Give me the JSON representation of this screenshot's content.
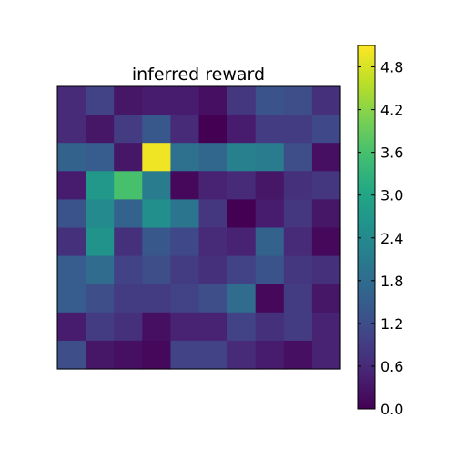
{
  "chart_data": {
    "type": "heatmap",
    "title": "inferred reward",
    "xlabel": "",
    "ylabel": "",
    "x_ticks": false,
    "y_ticks": false,
    "rows": 10,
    "cols": 10,
    "colormap": "viridis",
    "colorbar": {
      "position": "right",
      "range": [
        0.0,
        5.1
      ],
      "ticks": [
        0.0,
        0.6,
        1.2,
        1.8,
        2.4,
        3.0,
        3.6,
        4.2,
        4.8
      ],
      "tick_labels": [
        "0.0",
        "0.6",
        "1.2",
        "1.8",
        "2.4",
        "3.0",
        "3.6",
        "4.2",
        "4.8"
      ]
    },
    "values": [
      [
        0.6,
        1.0,
        0.3,
        0.4,
        0.4,
        0.2,
        0.8,
        1.3,
        1.2,
        0.7
      ],
      [
        0.6,
        0.3,
        0.9,
        1.4,
        0.6,
        0.0,
        0.4,
        0.9,
        0.9,
        1.1
      ],
      [
        1.6,
        1.5,
        0.3,
        5.0,
        1.9,
        1.7,
        2.2,
        2.1,
        1.2,
        0.2
      ],
      [
        0.4,
        2.7,
        3.6,
        2.1,
        0.1,
        0.5,
        0.6,
        0.3,
        0.7,
        0.8
      ],
      [
        1.3,
        2.4,
        1.6,
        2.5,
        2.0,
        0.8,
        0.0,
        0.4,
        0.8,
        0.3
      ],
      [
        0.7,
        2.6,
        0.7,
        1.4,
        1.1,
        0.6,
        0.5,
        1.6,
        0.6,
        0.1
      ],
      [
        1.5,
        1.8,
        1.0,
        1.2,
        0.9,
        0.7,
        1.0,
        1.3,
        0.8,
        0.7
      ],
      [
        1.5,
        1.2,
        0.9,
        0.9,
        1.0,
        1.2,
        1.8,
        0.1,
        0.9,
        0.3
      ],
      [
        0.4,
        0.9,
        0.7,
        0.2,
        0.5,
        0.5,
        1.0,
        0.7,
        0.9,
        0.5
      ],
      [
        1.2,
        0.3,
        0.2,
        0.1,
        1.0,
        1.0,
        0.6,
        0.4,
        0.2,
        0.5
      ]
    ]
  }
}
